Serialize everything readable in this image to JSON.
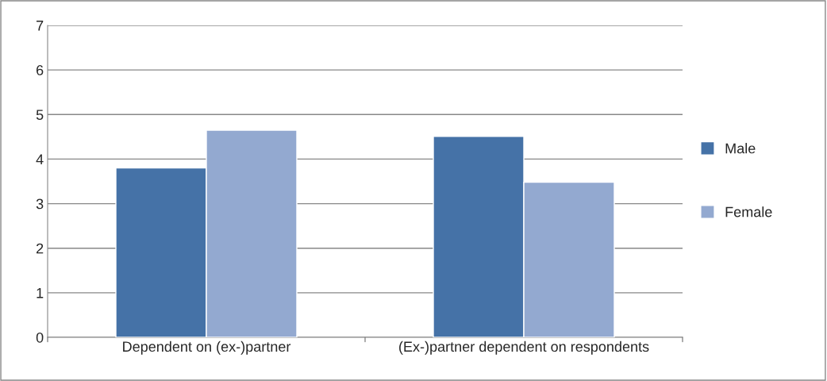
{
  "chart_data": {
    "type": "bar",
    "categories": [
      "Dependent on (ex-)partner",
      "(Ex-)partner dependent on respondents"
    ],
    "series": [
      {
        "name": "Male",
        "color": "#4572a7",
        "values": [
          3.8,
          4.51
        ]
      },
      {
        "name": "Female",
        "color": "#93a9d0",
        "values": [
          4.65,
          3.48
        ]
      }
    ],
    "ylim": [
      0,
      7
    ],
    "yticks": [
      0,
      1,
      2,
      3,
      4,
      5,
      6,
      7
    ],
    "grid": "y",
    "legend": "right"
  }
}
